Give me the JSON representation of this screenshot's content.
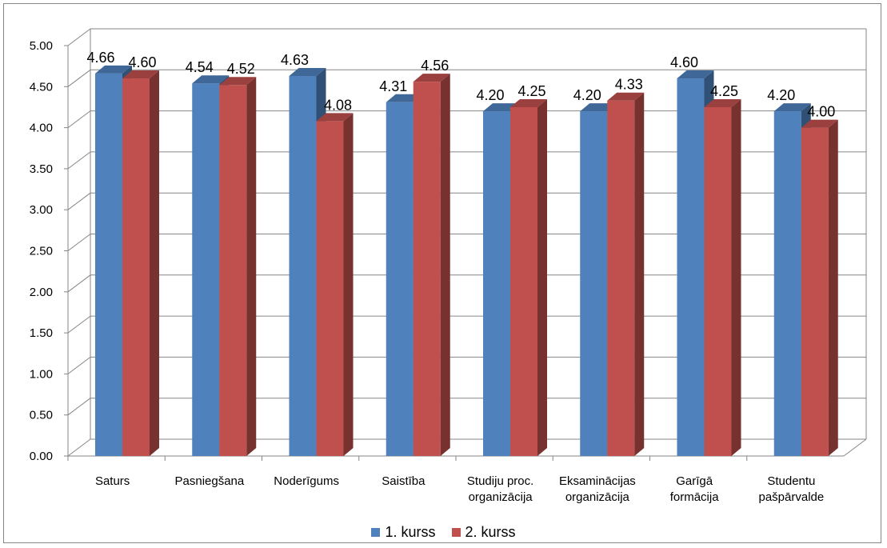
{
  "chart_data": {
    "type": "bar",
    "categories": [
      "Saturs",
      "Pasniegšana",
      "Noderīgums",
      "Saistība",
      "Studiju proc. organizācija",
      "Eksaminācijas organizācija",
      "Garīgā formācija",
      "Studentu pašpārvalde"
    ],
    "category_lines": [
      [
        "Saturs"
      ],
      [
        "Pasniegšana"
      ],
      [
        "Noderīgums"
      ],
      [
        "Saistība"
      ],
      [
        "Studiju proc.",
        "organizācija"
      ],
      [
        "Eksaminācijas",
        "organizācija"
      ],
      [
        "Garīgā",
        "formācija"
      ],
      [
        "Studentu",
        "pašpārvalde"
      ]
    ],
    "series": [
      {
        "name": "1. kurss",
        "color": "#4F81BD",
        "values": [
          4.66,
          4.54,
          4.63,
          4.31,
          4.2,
          4.2,
          4.6,
          4.2
        ]
      },
      {
        "name": "2. kurss",
        "color": "#C0504D",
        "values": [
          4.6,
          4.52,
          4.08,
          4.56,
          4.25,
          4.33,
          4.25,
          4.0
        ]
      }
    ],
    "ylim": [
      0,
      5
    ],
    "ytick_step": 0.5,
    "ytick_labels": [
      "0.00",
      "0.50",
      "1.00",
      "1.50",
      "2.00",
      "2.50",
      "3.00",
      "3.50",
      "4.00",
      "4.50",
      "5.00"
    ],
    "grid": true,
    "legend_position": "bottom",
    "style": "3d-clustered-column"
  }
}
